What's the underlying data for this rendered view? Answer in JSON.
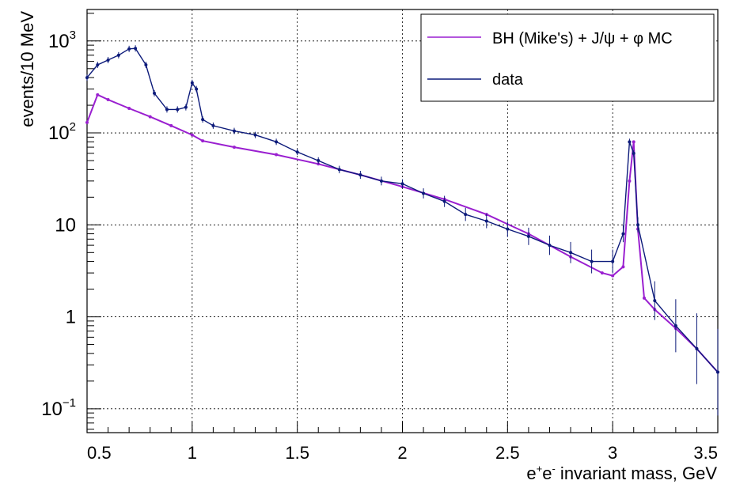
{
  "chart_data": {
    "type": "scatter",
    "title": "",
    "xlabel_parts": [
      "e",
      "+",
      "e",
      "-",
      " invariant mass, GeV"
    ],
    "ylabel": "events/10 MeV",
    "xlim": [
      0.5,
      3.5
    ],
    "ylim": [
      0.055,
      2200
    ],
    "yscale": "log",
    "grid": true,
    "legend_position": "top-right",
    "x_ticks": [
      {
        "value": 0.5,
        "label": "0.5"
      },
      {
        "value": 1.0,
        "label": "1"
      },
      {
        "value": 1.5,
        "label": "1.5"
      },
      {
        "value": 2.0,
        "label": "2"
      },
      {
        "value": 2.5,
        "label": "2.5"
      },
      {
        "value": 3.0,
        "label": "3"
      },
      {
        "value": 3.5,
        "label": "3.5"
      }
    ],
    "y_ticks": [
      {
        "value": 0.1,
        "base": "10",
        "exp": "−1"
      },
      {
        "value": 1,
        "base": "1",
        "exp": ""
      },
      {
        "value": 10,
        "base": "10",
        "exp": ""
      },
      {
        "value": 100,
        "base": "10",
        "exp": "2"
      },
      {
        "value": 1000,
        "base": "10",
        "exp": "3"
      }
    ],
    "series": [
      {
        "name": "BH (Mike's) + J/ψ + φ MC",
        "color": "#9a1fd0",
        "x": [
          0.5,
          0.55,
          0.6,
          0.7,
          0.8,
          0.9,
          1.0,
          1.05,
          1.2,
          1.4,
          1.6,
          1.8,
          2.0,
          2.2,
          2.4,
          2.6,
          2.8,
          2.95,
          3.0,
          3.05,
          3.08,
          3.1,
          3.12,
          3.15,
          3.2,
          3.3,
          3.4,
          3.5
        ],
        "y": [
          130,
          260,
          230,
          185,
          150,
          120,
          95,
          82,
          70,
          58,
          46,
          35,
          26,
          19,
          13,
          8,
          4.5,
          3.0,
          2.8,
          3.5,
          30,
          80,
          9,
          1.6,
          1.2,
          0.75,
          0.45,
          0.25
        ]
      },
      {
        "name": "data",
        "color": "#0c1a7a",
        "x": [
          0.5,
          0.55,
          0.6,
          0.65,
          0.7,
          0.73,
          0.78,
          0.82,
          0.88,
          0.93,
          0.97,
          1.0,
          1.02,
          1.05,
          1.1,
          1.2,
          1.3,
          1.4,
          1.5,
          1.6,
          1.7,
          1.8,
          1.9,
          2.0,
          2.1,
          2.2,
          2.3,
          2.4,
          2.5,
          2.6,
          2.7,
          2.8,
          2.9,
          3.0,
          3.05,
          3.08,
          3.1,
          3.12,
          3.2,
          3.3,
          3.4,
          3.5
        ],
        "y": [
          400,
          550,
          620,
          700,
          820,
          830,
          550,
          270,
          180,
          180,
          190,
          350,
          300,
          140,
          120,
          105,
          95,
          80,
          62,
          50,
          40,
          35,
          30,
          28,
          22,
          18,
          13,
          11,
          9,
          7.5,
          6,
          5,
          4,
          4,
          8,
          80,
          60,
          10,
          1.5,
          0.8,
          0.45,
          0.25
        ]
      }
    ]
  }
}
